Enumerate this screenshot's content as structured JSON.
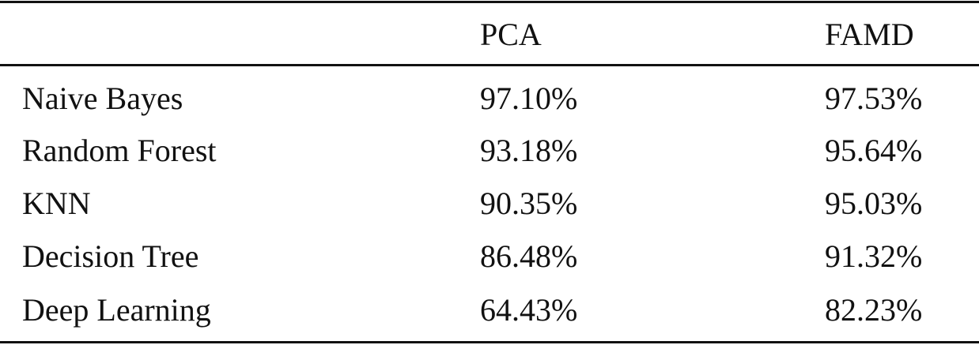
{
  "table": {
    "columns": [
      "PCA",
      "FAMD"
    ],
    "rows": [
      [
        "Naive Bayes",
        "97.10%",
        "97.53%"
      ],
      [
        "Random Forest",
        "93.18%",
        "95.64%"
      ],
      [
        "KNN",
        "90.35%",
        "95.03%"
      ],
      [
        "Decision Tree",
        "86.48%",
        "91.32%"
      ],
      [
        "Deep Learning",
        "64.43%",
        "82.23%"
      ]
    ]
  }
}
